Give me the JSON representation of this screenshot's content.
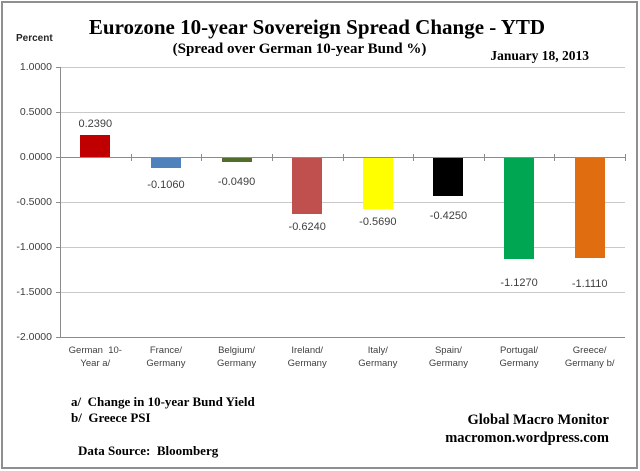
{
  "header": {
    "title": "Eurozone 10-year Sovereign Spread Change - YTD",
    "subtitle": "(Spread over German 10-year Bund %)",
    "date": "January 18, 2013",
    "y_axis_unit": "Percent"
  },
  "chart_data": {
    "type": "bar",
    "title": "Eurozone 10-year Sovereign Spread Change - YTD",
    "subtitle": "(Spread over German 10-year Bund %)",
    "as_of_date": "January 18, 2013",
    "ylabel": "Percent",
    "ylim": [
      -2.0,
      1.0
    ],
    "ytick_step": 0.5,
    "ytick_labels": [
      "1.0000",
      "0.5000",
      "0.0000",
      "-0.5000",
      "-1.0000",
      "-1.5000",
      "-2.0000"
    ],
    "grid": true,
    "legend": false,
    "categories": [
      "German 10-Year a/",
      "France/Germany",
      "Belgium/Germany",
      "Ireland/Germany",
      "Italy/Germany",
      "Spain/Germany",
      "Portugal/Germany",
      "Greece/Germany b/"
    ],
    "values": [
      0.239,
      -0.106,
      -0.049,
      -0.624,
      -0.569,
      -0.425,
      -1.127,
      -1.111
    ],
    "bars": [
      {
        "category_line1": "German  10-",
        "category_line2": "Year a/",
        "value": 0.239,
        "value_label": "0.2390",
        "color": "#c00000"
      },
      {
        "category_line1": "France/",
        "category_line2": "Germany",
        "value": -0.106,
        "value_label": "-0.1060",
        "color": "#4f81bd"
      },
      {
        "category_line1": "Belgium/",
        "category_line2": "Germany",
        "value": -0.049,
        "value_label": "-0.0490",
        "color": "#526d29"
      },
      {
        "category_line1": "Ireland/",
        "category_line2": "Germany",
        "value": -0.624,
        "value_label": "-0.6240",
        "color": "#c0504d"
      },
      {
        "category_line1": "Italy/",
        "category_line2": "Germany",
        "value": -0.569,
        "value_label": "-0.5690",
        "color": "#ffff00"
      },
      {
        "category_line1": "Spain/",
        "category_line2": "Germany",
        "value": -0.425,
        "value_label": "-0.4250",
        "color": "#000000"
      },
      {
        "category_line1": "Portugal/",
        "category_line2": "Germany",
        "value": -1.127,
        "value_label": "-1.1270",
        "color": "#00a651"
      },
      {
        "category_line1": "Greece/",
        "category_line2": "Germany b/",
        "value": -1.111,
        "value_label": "-1.1110",
        "color": "#e06d10"
      }
    ]
  },
  "footnotes": {
    "a": "a/  Change in 10-year Bund Yield",
    "b": "b/  Greece PSI",
    "source": "Data Source:  Bloomberg"
  },
  "credit": {
    "line1": "Global Macro Monitor",
    "line2": "macromon.wordpress.com"
  }
}
